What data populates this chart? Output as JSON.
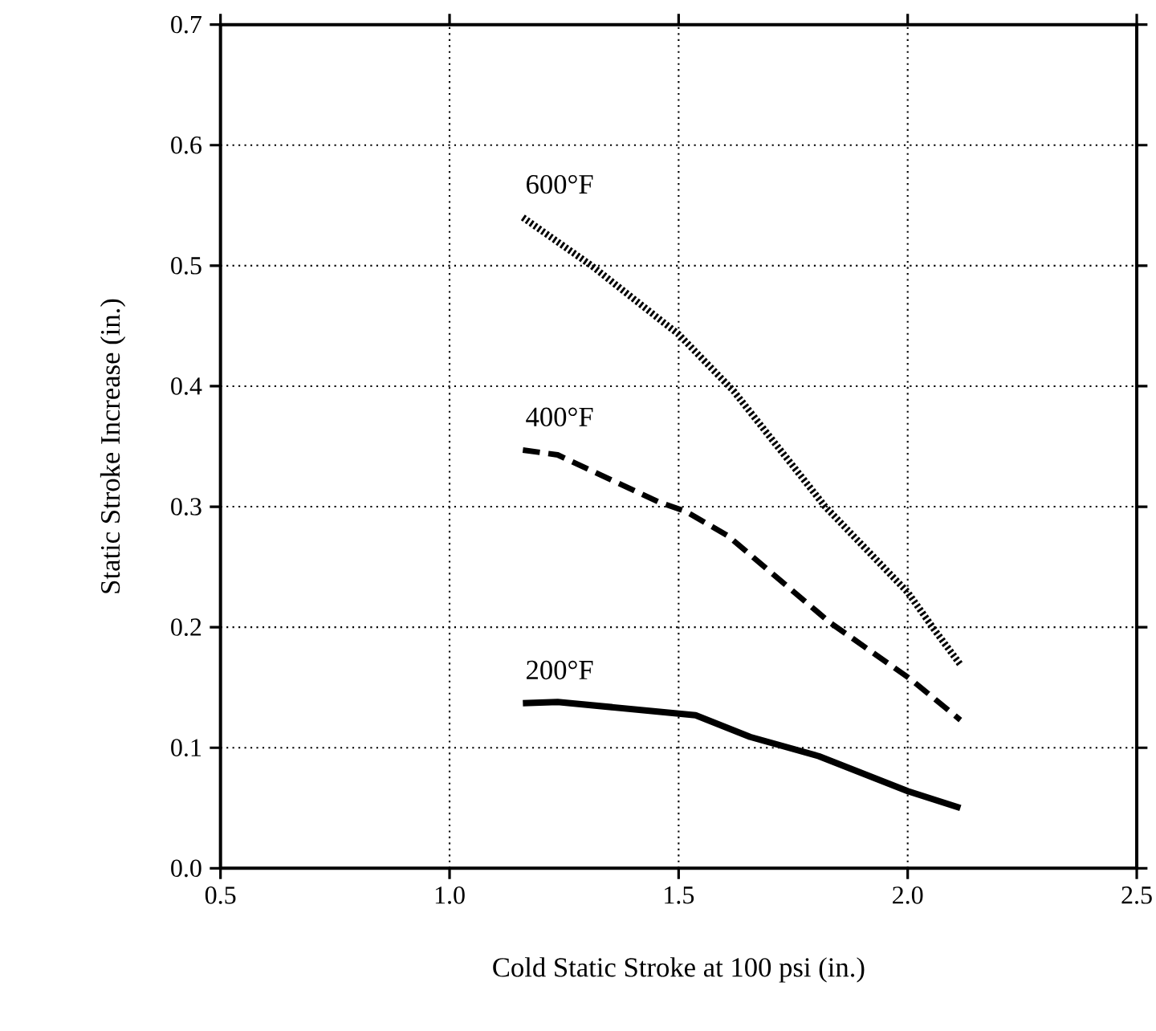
{
  "chart_data": {
    "type": "line",
    "xlabel": "Cold Static Stroke at 100 psi  (in.)",
    "ylabel": "Static Stroke Increase  (in.)",
    "xlim": [
      0.5,
      2.5
    ],
    "ylim": [
      0.0,
      0.7
    ],
    "xticks": [
      {
        "value": 0.5,
        "label": "0.5"
      },
      {
        "value": 1.0,
        "label": "1.0"
      },
      {
        "value": 1.5,
        "label": "1.5"
      },
      {
        "value": 2.0,
        "label": "2.0"
      },
      {
        "value": 2.5,
        "label": "2.5"
      }
    ],
    "yticks": [
      {
        "value": 0.0,
        "label": "0.0"
      },
      {
        "value": 0.1,
        "label": "0.1"
      },
      {
        "value": 0.2,
        "label": "0.2"
      },
      {
        "value": 0.3,
        "label": "0.3"
      },
      {
        "value": 0.4,
        "label": "0.4"
      },
      {
        "value": 0.5,
        "label": "0.5"
      },
      {
        "value": 0.6,
        "label": "0.6"
      },
      {
        "value": 0.7,
        "label": "0.7"
      }
    ],
    "grid": true,
    "legend": false,
    "marker": "none",
    "series": [
      {
        "name": "600°F",
        "color": "#000000",
        "line_style": "dotted",
        "x": [
          1.16,
          1.31,
          1.5,
          1.62,
          1.82,
          2.0,
          2.06,
          2.115
        ],
        "values": [
          0.54,
          0.5,
          0.443,
          0.396,
          0.3,
          0.229,
          0.197,
          0.169
        ]
      },
      {
        "name": "400°F",
        "color": "#000000",
        "line_style": "dashed",
        "x": [
          1.16,
          1.236,
          1.456,
          1.516,
          1.607,
          1.83,
          2.006,
          2.115
        ],
        "values": [
          0.347,
          0.343,
          0.304,
          0.296,
          0.276,
          0.204,
          0.157,
          0.123
        ]
      },
      {
        "name": "200°F",
        "color": "#000000",
        "line_style": "solid",
        "x": [
          1.16,
          1.236,
          1.537,
          1.656,
          1.806,
          2.0,
          2.115
        ],
        "values": [
          0.137,
          0.138,
          0.127,
          0.109,
          0.093,
          0.064,
          0.05
        ]
      }
    ]
  }
}
